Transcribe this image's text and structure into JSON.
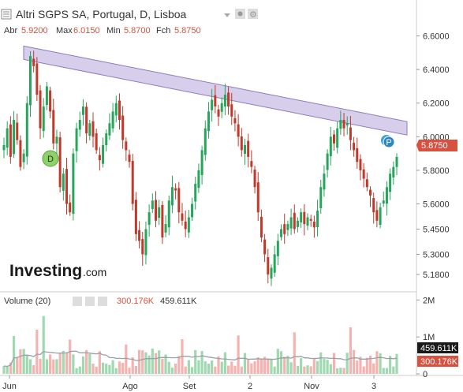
{
  "header": {
    "title": "Altri SGPS SA, Portugal, D, Lisboa",
    "open_label": "Abr",
    "open_value": "5.9200",
    "high_label": "Max",
    "high_value": "6.0150",
    "low_label": "Min",
    "low_value": "5.8700",
    "close_label": "Fch",
    "close_value": "5.8750"
  },
  "logo": {
    "brand": "Investing",
    "suffix": ".com"
  },
  "volume_header": {
    "label": "Volume (20)",
    "value_a": "300.176K",
    "value_b": "459.611K"
  },
  "colors": {
    "up": "#26a65b",
    "down": "#c0392b",
    "vol_up": "#9fd9b0",
    "vol_down": "#f4b3b0",
    "trend_fill": "#c9bee6",
    "trend_stroke": "#8d7bbd",
    "price_tag": "#d8503e",
    "vol_tag_dark": "#1a1a1a",
    "ma": "#9aa0a6"
  },
  "markers": {
    "dividend": "D",
    "split_or_p": "P"
  },
  "chart_data": [
    {
      "type": "candlestick",
      "title": "Altri SGPS SA, Portugal, D, Lisboa",
      "x_tick_labels": [
        "Jun",
        "Ago",
        "Set",
        "2",
        "Nov",
        "3"
      ],
      "y_tick_labels": [
        "6.6000",
        "6.4000",
        "6.2000",
        "6.0000",
        "5.8000",
        "5.6000",
        "5.4500",
        "5.3000",
        "5.1800"
      ],
      "ylim": [
        5.1,
        6.72
      ],
      "last_price": "5.8750",
      "trendline": {
        "start": 6.5,
        "end": 6.05,
        "channel_width": 0.08
      },
      "closes": [
        5.95,
        6.05,
        5.88,
        6.1,
        5.98,
        5.82,
        5.9,
        6.2,
        6.48,
        6.42,
        6.25,
        6.05,
        6.18,
        6.3,
        6.15,
        5.96,
        6.0,
        5.7,
        5.78,
        5.6,
        5.55,
        5.9,
        6.05,
        6.1,
        6.18,
        6.02,
        6.08,
        6.0,
        5.92,
        5.86,
        5.95,
        6.02,
        6.08,
        6.15,
        6.2,
        6.1,
        5.98,
        5.92,
        5.85,
        5.6,
        5.42,
        5.38,
        5.3,
        5.45,
        5.55,
        5.62,
        5.5,
        5.58,
        5.4,
        5.48,
        5.62,
        5.7,
        5.68,
        5.55,
        5.5,
        5.45,
        5.52,
        5.6,
        5.72,
        5.8,
        5.92,
        6.05,
        6.15,
        6.22,
        6.18,
        6.12,
        6.2,
        6.25,
        6.18,
        6.12,
        6.08,
        6.0,
        5.92,
        5.95,
        5.88,
        5.82,
        5.7,
        5.55,
        5.4,
        5.3,
        5.18,
        5.22,
        5.3,
        5.38,
        5.45,
        5.42,
        5.48,
        5.52,
        5.45,
        5.5,
        5.55,
        5.48,
        5.52,
        5.5,
        5.46,
        5.56,
        5.7,
        5.78,
        5.9,
        6.0,
        5.96,
        6.05,
        6.1,
        6.05,
        6.08,
        5.98,
        5.92,
        5.85,
        5.8,
        5.75,
        5.7,
        5.65,
        5.55,
        5.5,
        5.58,
        5.62,
        5.7,
        5.78,
        5.82,
        5.88
      ],
      "volume_axis_labels": [
        "2M",
        "1M",
        "0"
      ],
      "volume_last": "459.611K",
      "volume_ma_last": "300.176K"
    }
  ]
}
